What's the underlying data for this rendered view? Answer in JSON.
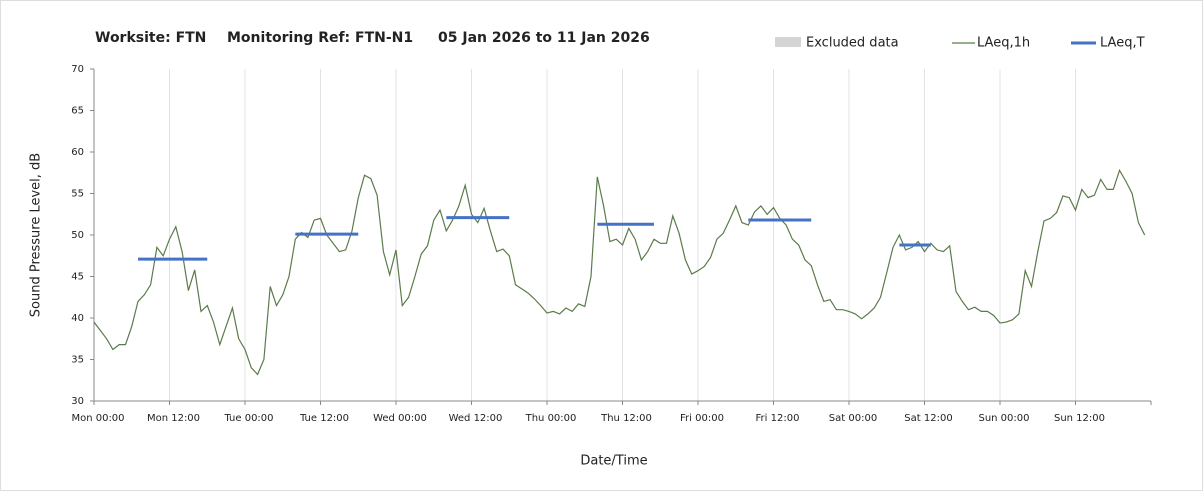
{
  "chart_data": {
    "type": "line",
    "title": [
      "Worksite: FTN",
      "Monitoring Ref: FTN-N1",
      "05 Jan 2026 to 11 Jan 2026"
    ],
    "xlabel": "Date/Time",
    "ylabel": "Sound Pressure Level, dB",
    "xlim": [
      0,
      168
    ],
    "ylim": [
      30,
      70
    ],
    "yticks": [
      30,
      35,
      40,
      45,
      50,
      55,
      60,
      65,
      70
    ],
    "xticks": [
      {
        "value": 0,
        "label": "Mon 00:00"
      },
      {
        "value": 12,
        "label": "Mon 12:00"
      },
      {
        "value": 24,
        "label": "Tue 00:00"
      },
      {
        "value": 36,
        "label": "Tue 12:00"
      },
      {
        "value": 48,
        "label": "Wed 00:00"
      },
      {
        "value": 60,
        "label": "Wed 12:00"
      },
      {
        "value": 72,
        "label": "Thu 00:00"
      },
      {
        "value": 84,
        "label": "Thu 12:00"
      },
      {
        "value": 96,
        "label": "Fri 00:00"
      },
      {
        "value": 108,
        "label": "Fri 12:00"
      },
      {
        "value": 120,
        "label": "Sat 00:00"
      },
      {
        "value": 132,
        "label": "Sat 12:00"
      },
      {
        "value": 144,
        "label": "Sun 00:00"
      },
      {
        "value": 156,
        "label": "Sun 12:00"
      }
    ],
    "grid": true,
    "excluded": {
      "name": "Excluded data",
      "color": "#d4d4d4"
    },
    "series": [
      {
        "name": "LAeq,1h",
        "color": "#5b7b4b",
        "x": [
          0,
          1,
          2,
          3,
          4,
          5,
          6,
          7,
          8,
          9,
          10,
          11,
          12,
          13,
          14,
          15,
          16,
          17,
          18,
          19,
          20,
          21,
          22,
          23,
          24,
          25,
          26,
          27,
          28,
          29,
          30,
          31,
          32,
          33,
          34,
          35,
          36,
          37,
          38,
          39,
          40,
          41,
          42,
          43,
          44,
          45,
          46,
          47,
          48,
          49,
          50,
          51,
          52,
          53,
          54,
          55,
          56,
          57,
          58,
          59,
          60,
          61,
          62,
          63,
          64,
          65,
          66,
          67,
          68,
          69,
          70,
          71,
          72,
          73,
          74,
          75,
          76,
          77,
          78,
          79,
          80,
          81,
          82,
          83,
          84,
          85,
          86,
          87,
          88,
          89,
          90,
          91,
          92,
          93,
          94,
          95,
          96,
          97,
          98,
          99,
          100,
          101,
          102,
          103,
          104,
          105,
          106,
          107,
          108,
          109,
          110,
          111,
          112,
          113,
          114,
          115,
          116,
          117,
          118,
          119,
          120,
          121,
          122,
          123,
          124,
          125,
          126,
          127,
          128,
          129,
          130,
          131,
          132,
          133,
          134,
          135,
          136,
          137,
          138,
          139,
          140,
          141,
          142,
          143,
          144,
          145,
          146,
          147,
          148,
          149,
          150,
          151,
          152,
          153,
          154,
          155,
          156,
          157,
          158,
          159,
          160,
          161,
          162,
          163,
          164,
          165,
          166,
          167
        ],
        "values": [
          39.5,
          38.5,
          37.5,
          36.2,
          36.8,
          36.8,
          39,
          42,
          42.8,
          44,
          48.5,
          47.5,
          49.5,
          51,
          48,
          43.3,
          45.8,
          40.8,
          41.5,
          39.5,
          36.8,
          39,
          41.2,
          37.5,
          36.2,
          34,
          33.2,
          35,
          43.8,
          41.5,
          42.8,
          45,
          49.5,
          50.3,
          49.7,
          51.8,
          52,
          50,
          49,
          48,
          48.2,
          50.5,
          54.5,
          57.2,
          56.8,
          54.8,
          48,
          45.2,
          48.2,
          41.5,
          42.5,
          45,
          47.7,
          48.7,
          51.8,
          53,
          50.5,
          51.8,
          53.5,
          56,
          52.5,
          51.5,
          53.2,
          50.5,
          48,
          48.3,
          47.5,
          44,
          43.5,
          43,
          42.3,
          41.5,
          40.6,
          40.8,
          40.5,
          41.2,
          40.8,
          41.7,
          41.4,
          45,
          57,
          53.5,
          49.2,
          49.5,
          48.8,
          50.8,
          49.5,
          47,
          48,
          49.5,
          49,
          49,
          52.3,
          50.2,
          47,
          45.3,
          45.7,
          46.2,
          47.3,
          49.5,
          50.2,
          51.8,
          53.5,
          51.5,
          51.2,
          52.8,
          53.5,
          52.5,
          53.3,
          52,
          51.2,
          49.5,
          48.8,
          47,
          46.3,
          44,
          42,
          42.2,
          41,
          41,
          40.8,
          40.5,
          39.9,
          40.5,
          41.2,
          42.5,
          45.5,
          48.5,
          50,
          48.2,
          48.5,
          49.2,
          48,
          49,
          48.2,
          48,
          48.7,
          43.2,
          42,
          41,
          41.3,
          40.8,
          40.8,
          40.3,
          39.4,
          39.5,
          39.8,
          40.5,
          45.7,
          43.8,
          48,
          51.7,
          52,
          52.7,
          54.7,
          54.5,
          53,
          55.5,
          54.5,
          54.8,
          56.7,
          55.5,
          55.5,
          57.8,
          56.5,
          55,
          51.5,
          50
        ]
      },
      {
        "name": "LAeq,T",
        "color": "#4472c4",
        "segments": [
          {
            "start": 7,
            "end": 18,
            "value": 47.1
          },
          {
            "start": 32,
            "end": 42,
            "value": 50.1
          },
          {
            "start": 56,
            "end": 66,
            "value": 52.1
          },
          {
            "start": 80,
            "end": 89,
            "value": 51.3
          },
          {
            "start": 104,
            "end": 114,
            "value": 51.8
          },
          {
            "start": 128,
            "end": 133,
            "value": 48.8
          }
        ]
      }
    ]
  }
}
